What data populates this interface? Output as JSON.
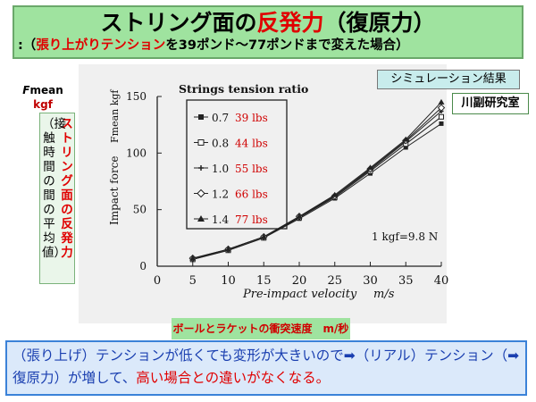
{
  "header": {
    "title_part1": "ストリング面の",
    "title_part2": "反発力",
    "title_part3": "（復原力）",
    "subtitle_part1": ":（",
    "subtitle_part2": "張り上がりテンション",
    "subtitle_part3": "を39ポンド～77ポンドまで変えた場合）"
  },
  "badges": {
    "simulation": "シミュレーション結果",
    "lab": "川副研究室"
  },
  "y_caption": {
    "fmean": "mean",
    "fmean_prefix": "F",
    "unit": "kgf"
  },
  "vertical_caption": {
    "col1": "ストリング面の反発力",
    "col2": "（接触時間の間の平均値）"
  },
  "x_caption": "ボールとラケットの衝突速度　m/秒",
  "note": {
    "part1": "（張り上げ）テンションが低くても",
    "part2": "変形が大きいので➡（リアル）テンション（➡復原力）が増して、",
    "part3": "高い場合との違いがなくなる。"
  },
  "chart_data": {
    "type": "line",
    "title": "Strings tension ratio",
    "xlabel": "Pre-impact velocity",
    "xlabel_unit": "m/s",
    "ylabel": "Impact force",
    "ylabel_unit": "Fmean kgf",
    "xlim": [
      0,
      40
    ],
    "ylim": [
      0,
      150
    ],
    "x_ticks": [
      0,
      5,
      10,
      15,
      20,
      25,
      30,
      35,
      40
    ],
    "y_ticks": [
      0,
      50,
      100,
      150
    ],
    "grid": false,
    "annotation": "1 kgf=9.8 N",
    "legend_position": "upper-left",
    "x": [
      5,
      10,
      15,
      20,
      25,
      30,
      35,
      40
    ],
    "series": [
      {
        "name": "0.7",
        "lbs": "39 lbs",
        "marker": "square-filled",
        "values": [
          6,
          14,
          25,
          42,
          60,
          82,
          105,
          126
        ]
      },
      {
        "name": "0.8",
        "lbs": "44 lbs",
        "marker": "square-open",
        "values": [
          6,
          14,
          25,
          43,
          61,
          84,
          108,
          132
        ]
      },
      {
        "name": "1.0",
        "lbs": "55 lbs",
        "marker": "plus",
        "values": [
          6,
          15,
          26,
          43,
          62,
          85,
          110,
          137
        ]
      },
      {
        "name": "1.2",
        "lbs": "66 lbs",
        "marker": "diamond-open",
        "values": [
          7,
          15,
          26,
          44,
          62,
          86,
          111,
          140
        ]
      },
      {
        "name": "1.4",
        "lbs": "77 lbs",
        "marker": "triangle-filled",
        "values": [
          7,
          15,
          26,
          44,
          63,
          87,
          112,
          145
        ]
      }
    ]
  }
}
